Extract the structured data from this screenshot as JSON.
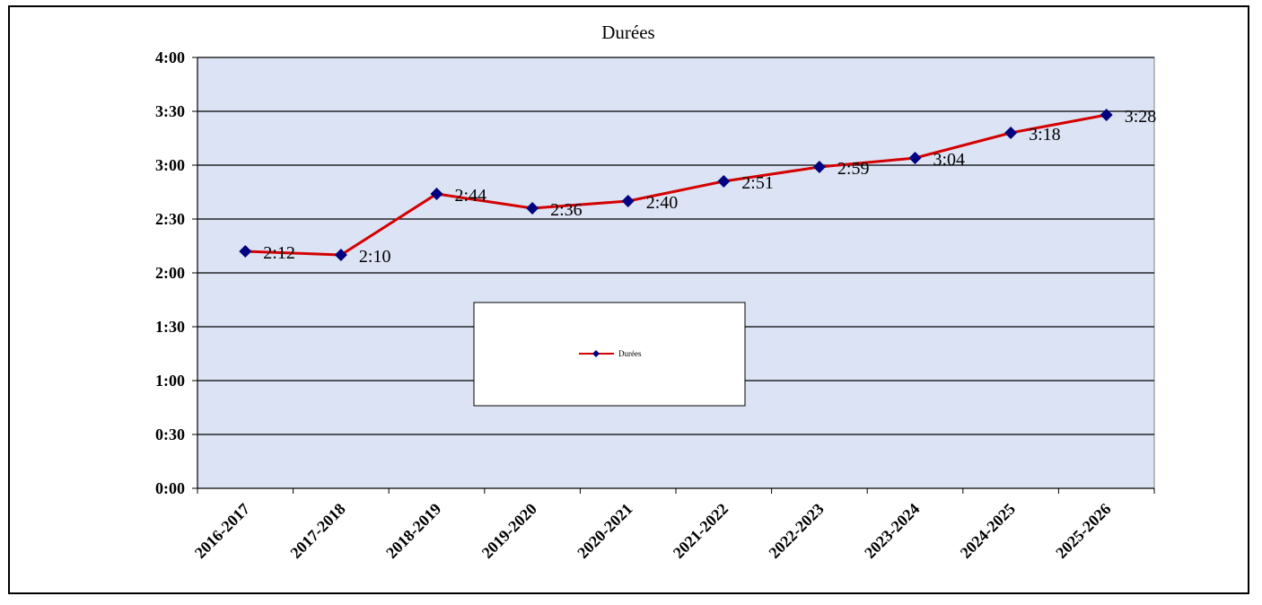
{
  "chart_data": {
    "type": "line",
    "title": "Durées",
    "xlabel": "",
    "ylabel": "",
    "categories": [
      "2016-2017",
      "2017-2018",
      "2018-2019",
      "2019-2020",
      "2020-2021",
      "2021-2022",
      "2022-2023",
      "2023-2024",
      "2024-2025",
      "2025-2026"
    ],
    "series": [
      {
        "name": "Durées",
        "values_minutes": [
          132,
          130,
          164,
          156,
          160,
          171,
          179,
          184,
          198,
          208
        ],
        "labels": [
          "2:12",
          "2:10",
          "2:44",
          "2:36",
          "2:40",
          "2:51",
          "2:59",
          "3:04",
          "3:18",
          "3:28"
        ],
        "line_color": "#d40000",
        "marker_color": "#000080",
        "marker": "diamond"
      }
    ],
    "ylim_minutes": [
      0,
      240
    ],
    "ytick_minutes": [
      0,
      30,
      60,
      90,
      120,
      150,
      180,
      210,
      240
    ],
    "ytick_labels": [
      "0:00",
      "0:30",
      "1:00",
      "1:30",
      "2:00",
      "2:30",
      "3:00",
      "3:30",
      "4:00"
    ],
    "grid": true,
    "plot_background": "#dce3f5",
    "legend": {
      "placement": "center",
      "entry": "Durées"
    }
  }
}
